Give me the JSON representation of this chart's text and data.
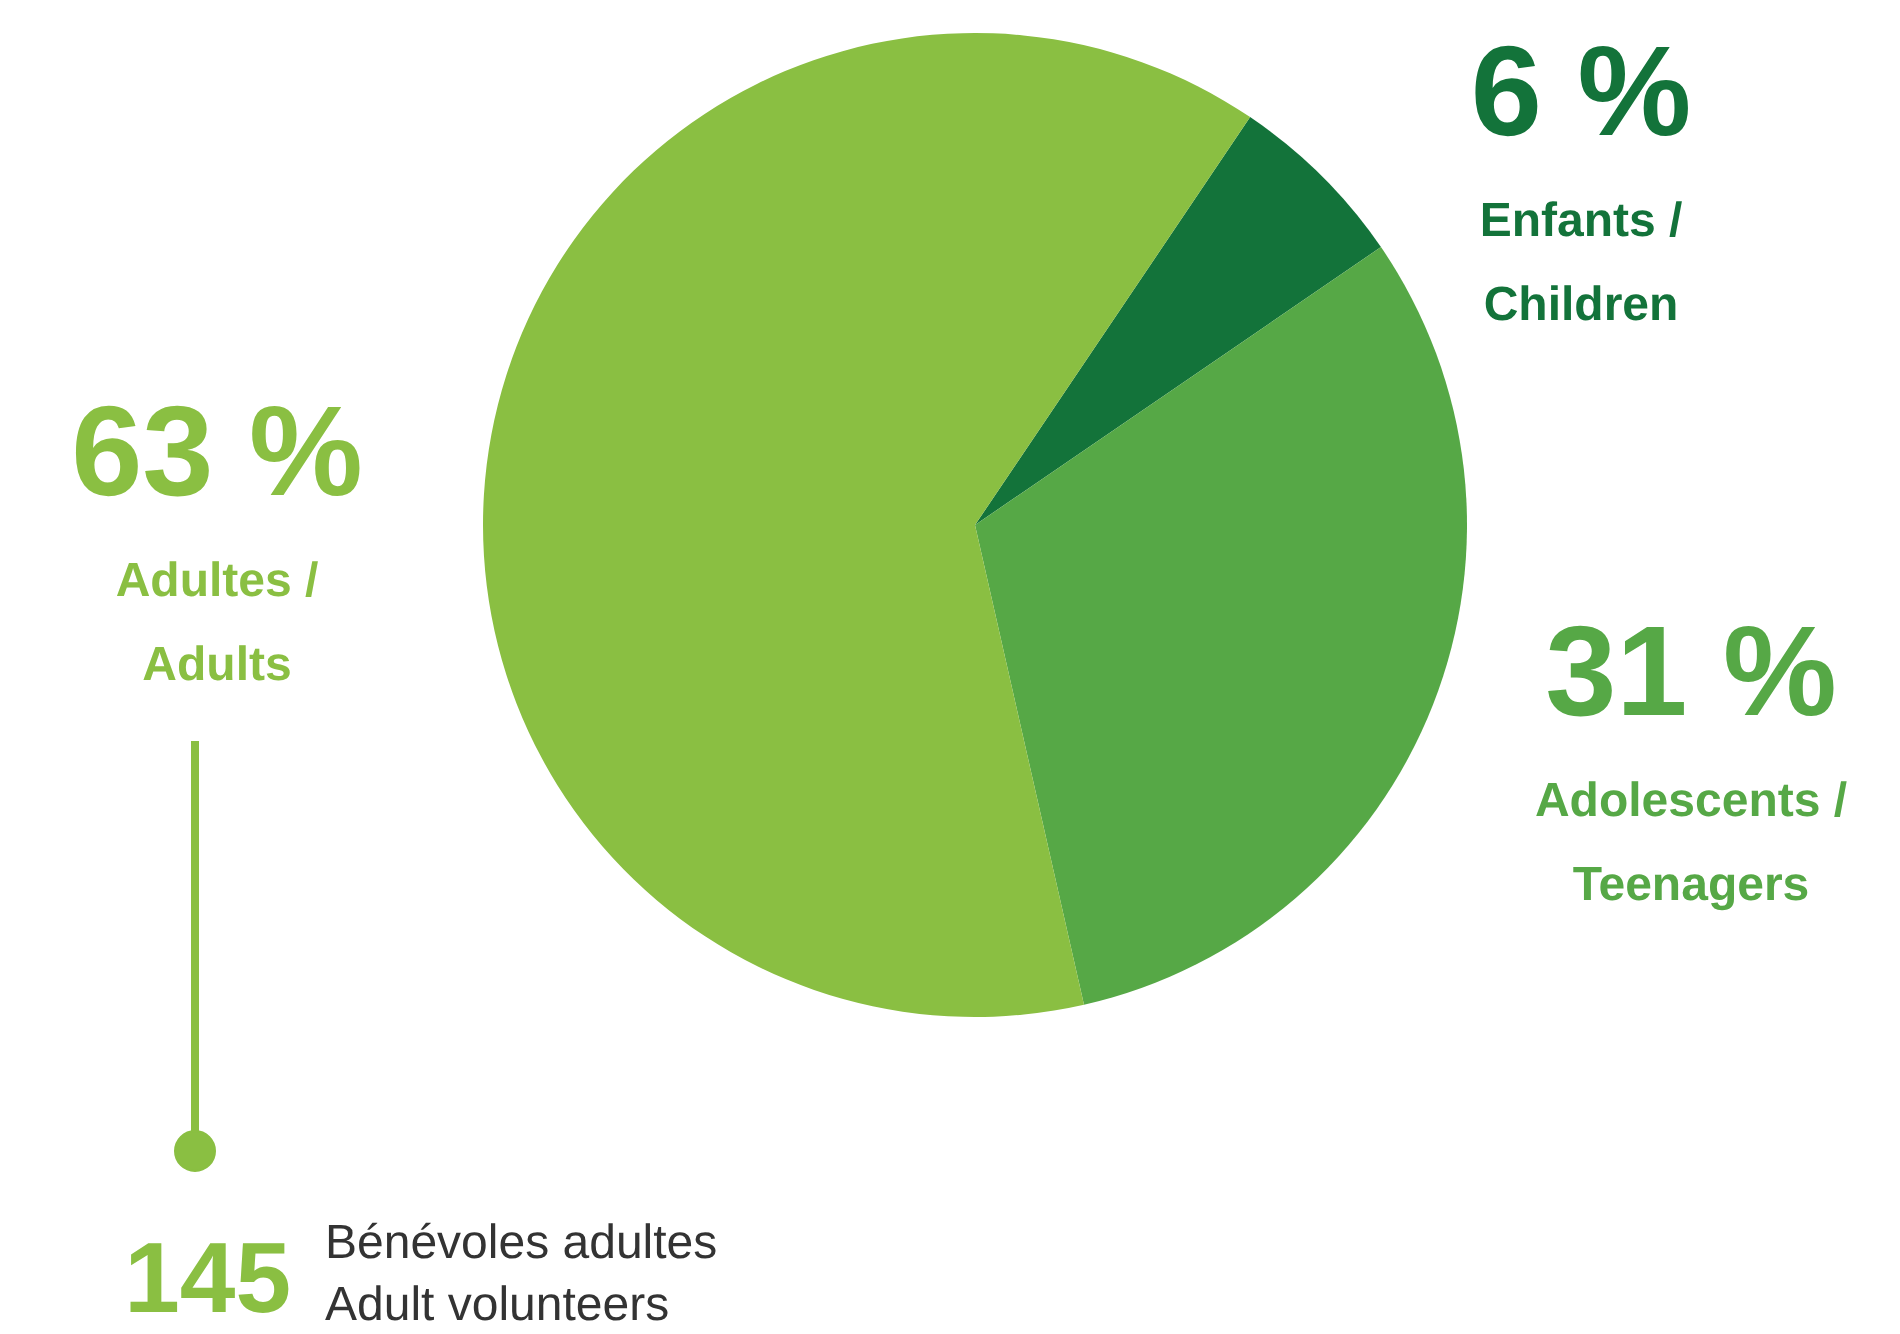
{
  "chart_data": {
    "type": "pie",
    "categories": [
      "Enfants / Children",
      "Adolescents / Teenagers",
      "Adultes / Adults"
    ],
    "values": [
      6,
      31,
      63
    ],
    "colors": [
      "#13733a",
      "#56a846",
      "#8abf42"
    ],
    "value_labels": [
      "6 %",
      "31 %",
      "63 %"
    ],
    "annotations": [
      "145",
      "Bénévoles adultes",
      "Adult volunteers"
    ]
  }
}
